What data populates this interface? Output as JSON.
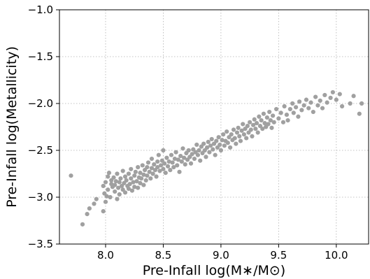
{
  "chart_data": {
    "type": "scatter",
    "xlabel": "Pre-Infall log(M∗/M⊙)",
    "ylabel": "Pre-Infall log(Metallicity)",
    "xlim": [
      7.6,
      10.28
    ],
    "ylim": [
      -3.5,
      -1.0
    ],
    "xticks": [
      8.0,
      8.5,
      9.0,
      9.5,
      10.0
    ],
    "xtick_labels": [
      "8.0",
      "8.5",
      "9.0",
      "9.5",
      "10.0"
    ],
    "yticks": [
      -1.0,
      -1.5,
      -2.0,
      -2.5,
      -3.0,
      -3.5
    ],
    "ytick_labels": [
      "−1.0",
      "−1.5",
      "−2.0",
      "−2.5",
      "−3.0",
      "−3.5"
    ],
    "grid": true,
    "marker_color": "#a0a0a0",
    "series": [
      {
        "points": [
          [
            7.7,
            -2.77
          ],
          [
            7.8,
            -3.29
          ],
          [
            7.84,
            -3.18
          ],
          [
            7.86,
            -3.12
          ],
          [
            7.9,
            -3.07
          ],
          [
            7.92,
            -3.02
          ],
          [
            7.98,
            -3.15
          ],
          [
            7.98,
            -2.88
          ],
          [
            7.99,
            -2.96
          ],
          [
            8.0,
            -3.05
          ],
          [
            8.0,
            -2.84
          ],
          [
            8.01,
            -2.99
          ],
          [
            8.02,
            -2.78
          ],
          [
            8.02,
            -2.92
          ],
          [
            8.03,
            -2.74
          ],
          [
            8.04,
            -3.0
          ],
          [
            8.05,
            -2.86
          ],
          [
            8.05,
            -2.82
          ],
          [
            8.06,
            -2.89
          ],
          [
            8.07,
            -2.79
          ],
          [
            8.08,
            -2.94
          ],
          [
            8.08,
            -2.87
          ],
          [
            8.09,
            -2.83
          ],
          [
            8.1,
            -2.75
          ],
          [
            8.1,
            -3.02
          ],
          [
            8.11,
            -2.9
          ],
          [
            8.12,
            -2.84
          ],
          [
            8.12,
            -2.97
          ],
          [
            8.13,
            -2.8
          ],
          [
            8.14,
            -2.88
          ],
          [
            8.15,
            -2.72
          ],
          [
            8.15,
            -2.92
          ],
          [
            8.16,
            -2.85
          ],
          [
            8.17,
            -2.78
          ],
          [
            8.17,
            -2.95
          ],
          [
            8.18,
            -2.82
          ],
          [
            8.19,
            -2.88
          ],
          [
            8.2,
            -2.75
          ],
          [
            8.2,
            -2.91
          ],
          [
            8.21,
            -2.86
          ],
          [
            8.22,
            -2.8
          ],
          [
            8.22,
            -2.7
          ],
          [
            8.23,
            -2.93
          ],
          [
            8.24,
            -2.84
          ],
          [
            8.25,
            -2.77
          ],
          [
            8.25,
            -2.89
          ],
          [
            8.26,
            -2.73
          ],
          [
            8.27,
            -2.83
          ],
          [
            8.28,
            -2.68
          ],
          [
            8.28,
            -2.9
          ],
          [
            8.29,
            -2.79
          ],
          [
            8.3,
            -2.85
          ],
          [
            8.3,
            -2.74
          ],
          [
            8.31,
            -2.8
          ],
          [
            8.32,
            -2.66
          ],
          [
            8.33,
            -2.87
          ],
          [
            8.33,
            -2.76
          ],
          [
            8.34,
            -2.71
          ],
          [
            8.35,
            -2.82
          ],
          [
            8.36,
            -2.68
          ],
          [
            8.36,
            -2.77
          ],
          [
            8.37,
            -2.63
          ],
          [
            8.38,
            -2.73
          ],
          [
            8.39,
            -2.8
          ],
          [
            8.4,
            -2.69
          ],
          [
            8.4,
            -2.59
          ],
          [
            8.41,
            -2.75
          ],
          [
            8.42,
            -2.65
          ],
          [
            8.43,
            -2.71
          ],
          [
            8.44,
            -2.78
          ],
          [
            8.45,
            -2.62
          ],
          [
            8.45,
            -2.68
          ],
          [
            8.46,
            -2.55
          ],
          [
            8.47,
            -2.72
          ],
          [
            8.48,
            -2.66
          ],
          [
            8.49,
            -2.61
          ],
          [
            8.5,
            -2.7
          ],
          [
            8.5,
            -2.5
          ],
          [
            8.51,
            -2.64
          ],
          [
            8.52,
            -2.74
          ],
          [
            8.53,
            -2.58
          ],
          [
            8.54,
            -2.67
          ],
          [
            8.55,
            -2.62
          ],
          [
            8.56,
            -2.71
          ],
          [
            8.57,
            -2.55
          ],
          [
            8.58,
            -2.63
          ],
          [
            8.59,
            -2.68
          ],
          [
            8.6,
            -2.59
          ],
          [
            8.61,
            -2.52
          ],
          [
            8.62,
            -2.66
          ],
          [
            8.63,
            -2.6
          ],
          [
            8.64,
            -2.73
          ],
          [
            8.65,
            -2.56
          ],
          [
            8.66,
            -2.62
          ],
          [
            8.67,
            -2.48
          ],
          [
            8.68,
            -2.58
          ],
          [
            8.69,
            -2.65
          ],
          [
            8.7,
            -2.53
          ],
          [
            8.71,
            -2.6
          ],
          [
            8.72,
            -2.5
          ],
          [
            8.73,
            -2.57
          ],
          [
            8.74,
            -2.64
          ],
          [
            8.75,
            -2.54
          ],
          [
            8.76,
            -2.49
          ],
          [
            8.77,
            -2.59
          ],
          [
            8.78,
            -2.52
          ],
          [
            8.79,
            -2.44
          ],
          [
            8.8,
            -2.55
          ],
          [
            8.81,
            -2.5
          ],
          [
            8.82,
            -2.61
          ],
          [
            8.83,
            -2.46
          ],
          [
            8.84,
            -2.53
          ],
          [
            8.85,
            -2.43
          ],
          [
            8.86,
            -2.5
          ],
          [
            8.87,
            -2.57
          ],
          [
            8.88,
            -2.47
          ],
          [
            8.89,
            -2.41
          ],
          [
            8.9,
            -2.52
          ],
          [
            8.91,
            -2.45
          ],
          [
            8.92,
            -2.38
          ],
          [
            8.93,
            -2.49
          ],
          [
            8.94,
            -2.43
          ],
          [
            8.95,
            -2.55
          ],
          [
            8.96,
            -2.4
          ],
          [
            8.97,
            -2.47
          ],
          [
            8.98,
            -2.36
          ],
          [
            8.99,
            -2.44
          ],
          [
            9.0,
            -2.5
          ],
          [
            9.01,
            -2.39
          ],
          [
            9.02,
            -2.33
          ],
          [
            9.03,
            -2.45
          ],
          [
            9.04,
            -2.4
          ],
          [
            9.05,
            -2.3
          ],
          [
            9.06,
            -2.42
          ],
          [
            9.07,
            -2.36
          ],
          [
            9.08,
            -2.47
          ],
          [
            9.09,
            -2.33
          ],
          [
            9.1,
            -2.39
          ],
          [
            9.11,
            -2.28
          ],
          [
            9.12,
            -2.37
          ],
          [
            9.13,
            -2.43
          ],
          [
            9.14,
            -2.31
          ],
          [
            9.15,
            -2.26
          ],
          [
            9.16,
            -2.35
          ],
          [
            9.17,
            -2.4
          ],
          [
            9.18,
            -2.29
          ],
          [
            9.19,
            -2.22
          ],
          [
            9.2,
            -2.33
          ],
          [
            9.21,
            -2.27
          ],
          [
            9.22,
            -2.37
          ],
          [
            9.23,
            -2.24
          ],
          [
            9.24,
            -2.31
          ],
          [
            9.25,
            -2.2
          ],
          [
            9.26,
            -2.28
          ],
          [
            9.27,
            -2.35
          ],
          [
            9.28,
            -2.23
          ],
          [
            9.29,
            -2.17
          ],
          [
            9.3,
            -2.27
          ],
          [
            9.31,
            -2.21
          ],
          [
            9.32,
            -2.31
          ],
          [
            9.33,
            -2.14
          ],
          [
            9.34,
            -2.24
          ],
          [
            9.35,
            -2.18
          ],
          [
            9.36,
            -2.27
          ],
          [
            9.37,
            -2.11
          ],
          [
            9.38,
            -2.21
          ],
          [
            9.39,
            -2.25
          ],
          [
            9.4,
            -2.15
          ],
          [
            9.41,
            -2.22
          ],
          [
            9.42,
            -2.09
          ],
          [
            9.43,
            -2.18
          ],
          [
            9.44,
            -2.26
          ],
          [
            9.45,
            -2.13
          ],
          [
            9.46,
            -2.2
          ],
          [
            9.48,
            -2.06
          ],
          [
            9.5,
            -2.16
          ],
          [
            9.52,
            -2.1
          ],
          [
            9.54,
            -2.2
          ],
          [
            9.55,
            -2.03
          ],
          [
            9.57,
            -2.12
          ],
          [
            9.58,
            -2.18
          ],
          [
            9.6,
            -2.06
          ],
          [
            9.62,
            -2.0
          ],
          [
            9.63,
            -2.1
          ],
          [
            9.65,
            -2.04
          ],
          [
            9.67,
            -2.14
          ],
          [
            9.68,
            -1.98
          ],
          [
            9.7,
            -2.07
          ],
          [
            9.72,
            -2.02
          ],
          [
            9.74,
            -1.96
          ],
          [
            9.76,
            -2.05
          ],
          [
            9.78,
            -1.99
          ],
          [
            9.8,
            -2.09
          ],
          [
            9.82,
            -1.93
          ],
          [
            9.84,
            -2.02
          ],
          [
            9.86,
            -1.97
          ],
          [
            9.88,
            -2.05
          ],
          [
            9.9,
            -1.91
          ],
          [
            9.92,
            -1.99
          ],
          [
            9.95,
            -1.94
          ],
          [
            9.97,
            -1.88
          ],
          [
            10.0,
            -1.96
          ],
          [
            10.03,
            -1.9
          ],
          [
            10.05,
            -2.03
          ],
          [
            10.12,
            -2.0
          ],
          [
            10.15,
            -1.92
          ],
          [
            10.2,
            -2.11
          ],
          [
            10.22,
            -2.0
          ]
        ]
      }
    ]
  }
}
